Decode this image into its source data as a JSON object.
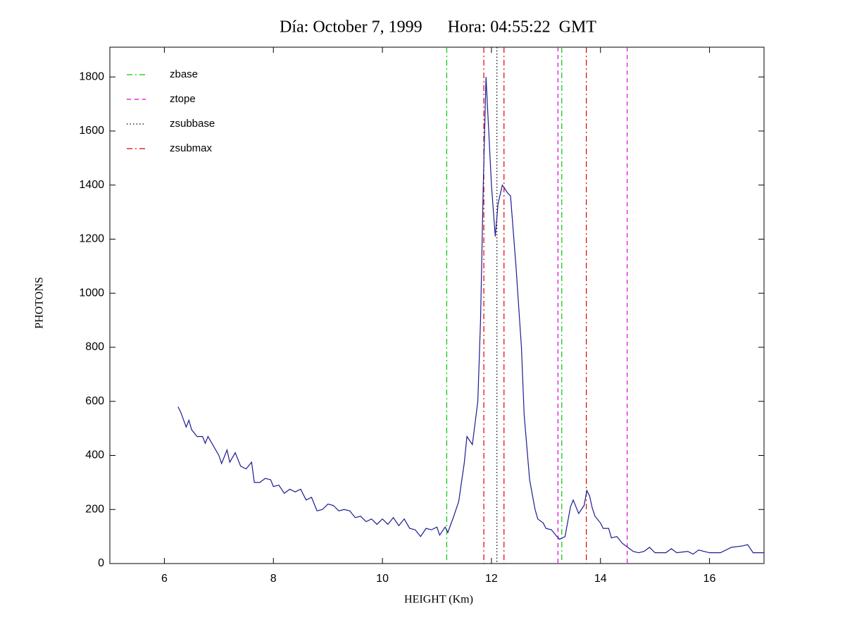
{
  "chart_data": {
    "type": "line",
    "title": "Día: October 7, 1999      Hora: 04:55:22  GMT",
    "xlabel": "HEIGHT (Km)",
    "ylabel": "PHOTONS",
    "xlim": [
      5,
      17
    ],
    "ylim": [
      0,
      1910
    ],
    "xticks": [
      6,
      8,
      10,
      12,
      14,
      16
    ],
    "yticks": [
      0,
      200,
      400,
      600,
      800,
      1000,
      1200,
      1400,
      1600,
      1800
    ],
    "legend": "upper left",
    "x": [
      6.25,
      6.3,
      6.4,
      6.45,
      6.5,
      6.6,
      6.7,
      6.75,
      6.8,
      6.9,
      7.0,
      7.05,
      7.15,
      7.2,
      7.3,
      7.4,
      7.5,
      7.6,
      7.65,
      7.75,
      7.85,
      7.95,
      8.0,
      8.1,
      8.2,
      8.3,
      8.4,
      8.5,
      8.6,
      8.7,
      8.8,
      8.9,
      9.0,
      9.1,
      9.2,
      9.3,
      9.4,
      9.5,
      9.6,
      9.7,
      9.8,
      9.9,
      10.0,
      10.1,
      10.2,
      10.3,
      10.4,
      10.5,
      10.6,
      10.7,
      10.8,
      10.9,
      11.0,
      11.05,
      11.15,
      11.2,
      11.3,
      11.4,
      11.5,
      11.55,
      11.65,
      11.75,
      11.8,
      11.85,
      11.9,
      11.95,
      12.0,
      12.07,
      12.12,
      12.2,
      12.3,
      12.35,
      12.45,
      12.55,
      12.6,
      12.7,
      12.8,
      12.85,
      12.95,
      13.0,
      13.1,
      13.2,
      13.25,
      13.35,
      13.45,
      13.5,
      13.6,
      13.7,
      13.75,
      13.8,
      13.85,
      13.9,
      14.0,
      14.05,
      14.15,
      14.2,
      14.3,
      14.4,
      14.5,
      14.6,
      14.7,
      14.8,
      14.9,
      15.0,
      15.2,
      15.3,
      15.4,
      15.6,
      15.7,
      15.8,
      16.0,
      16.2,
      16.4,
      16.6,
      16.7,
      16.8,
      17.0
    ],
    "series": [
      {
        "color": "#1c1c8f",
        "values": [
          580,
          560,
          505,
          530,
          495,
          470,
          470,
          445,
          470,
          435,
          400,
          370,
          420,
          375,
          410,
          360,
          350,
          375,
          300,
          300,
          315,
          310,
          285,
          290,
          260,
          275,
          265,
          275,
          235,
          245,
          195,
          200,
          220,
          215,
          195,
          200,
          195,
          170,
          175,
          155,
          165,
          145,
          165,
          145,
          170,
          140,
          165,
          130,
          125,
          100,
          130,
          125,
          135,
          105,
          135,
          115,
          170,
          230,
          370,
          470,
          440,
          600,
          900,
          1400,
          1800,
          1600,
          1400,
          1210,
          1330,
          1400,
          1370,
          1360,
          1100,
          800,
          550,
          310,
          200,
          165,
          150,
          130,
          125,
          100,
          90,
          100,
          210,
          235,
          185,
          215,
          270,
          250,
          205,
          175,
          150,
          130,
          130,
          95,
          100,
          75,
          60,
          45,
          40,
          45,
          60,
          40,
          40,
          55,
          40,
          45,
          35,
          50,
          40,
          40,
          60,
          65,
          70,
          40,
          40
        ]
      }
    ],
    "vlines": [
      {
        "name": "zbase",
        "color": "#00cc00",
        "style": "dashdot",
        "values": [
          11.18,
          13.29
        ]
      },
      {
        "name": "ztope",
        "color": "#dd00dd",
        "style": "dashed",
        "values": [
          13.22,
          14.49
        ]
      },
      {
        "name": "zsubbase",
        "color": "#000000",
        "style": "dotted",
        "values": [
          12.1
        ]
      },
      {
        "name": "zsubmax",
        "color": "#dd0000",
        "style": "dashdot",
        "values": [
          11.86,
          12.23,
          13.74
        ]
      }
    ]
  }
}
